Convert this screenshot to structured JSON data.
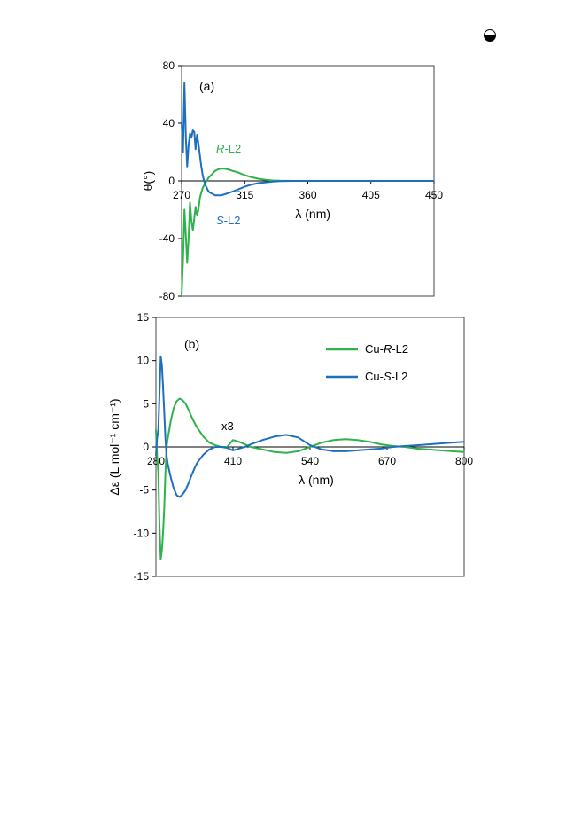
{
  "page_icon": "circle-half-icon",
  "colors": {
    "green": "#2db34a",
    "blue": "#1f6fbf"
  },
  "chart_data": [
    {
      "type": "line",
      "panel_label": "(a)",
      "xlabel": "λ (nm)",
      "ylabel": "θ(°)",
      "xlim": [
        270,
        450
      ],
      "ylim": [
        -80,
        80
      ],
      "xticks": [
        270,
        315,
        360,
        405,
        450
      ],
      "yticks": [
        -80,
        -40,
        0,
        40,
        80
      ],
      "grid": false,
      "annotations": [
        {
          "text": "R-L2",
          "italic_part": "R",
          "rest": "-L2",
          "series": "R-L2"
        },
        {
          "text": "S-L2",
          "italic_part": "S",
          "rest": "-L2",
          "series": "S-L2"
        }
      ],
      "series": [
        {
          "name": "R-L2",
          "color": "#2db34a",
          "x": [
            270,
            271,
            272,
            273,
            274,
            275,
            276,
            277,
            278,
            279,
            280,
            281,
            282,
            283,
            284,
            285,
            286,
            287,
            288,
            289,
            290,
            292,
            294,
            296,
            298,
            300,
            303,
            306,
            310,
            315,
            320,
            325,
            330,
            335,
            340,
            350,
            360,
            380,
            405,
            430,
            450
          ],
          "y": [
            -80,
            -55,
            -20,
            -38,
            -57,
            -40,
            -15,
            -28,
            -34,
            -26,
            -18,
            -24,
            -20,
            -12,
            -8,
            -5,
            -3,
            -1,
            0,
            2,
            3,
            5,
            7,
            8,
            8.5,
            8.5,
            8,
            7,
            6,
            4,
            2.5,
            1.5,
            0.8,
            0.3,
            0.1,
            0,
            0,
            0,
            0,
            0,
            0
          ]
        },
        {
          "name": "S-L2",
          "color": "#1f6fbf",
          "x": [
            270,
            271,
            272,
            273,
            274,
            275,
            276,
            277,
            278,
            279,
            280,
            281,
            282,
            283,
            284,
            285,
            286,
            287,
            288,
            289,
            290,
            292,
            294,
            296,
            298,
            300,
            303,
            306,
            310,
            315,
            320,
            325,
            330,
            335,
            340,
            350,
            360,
            380,
            405,
            430,
            450
          ],
          "y": [
            40,
            20,
            68,
            30,
            10,
            25,
            33,
            30,
            35,
            34,
            22,
            32,
            26,
            18,
            10,
            4,
            0,
            -3,
            -5,
            -7,
            -8,
            -9,
            -10,
            -10,
            -10,
            -9.5,
            -8.5,
            -7.5,
            -6,
            -4,
            -2.5,
            -1.5,
            -1,
            -0.5,
            -0.2,
            0,
            0,
            0,
            0,
            0,
            0
          ]
        }
      ]
    },
    {
      "type": "line",
      "panel_label": "(b)",
      "xlabel": "λ (nm)",
      "ylabel": "Δε (L mol⁻¹ cm⁻¹)",
      "xlim": [
        280,
        800
      ],
      "ylim": [
        -15,
        15
      ],
      "xticks": [
        280,
        410,
        540,
        670,
        800
      ],
      "yticks": [
        -15,
        -10,
        -5,
        0,
        5,
        10,
        15
      ],
      "grid": false,
      "legend_position": "top-right",
      "annotations": [
        {
          "text": "x3"
        }
      ],
      "series": [
        {
          "name": "Cu-R-L2",
          "legend_italic": "R",
          "color": "#2db34a",
          "x": [
            280,
            282,
            284,
            286,
            288,
            290,
            292,
            294,
            296,
            298,
            300,
            305,
            310,
            315,
            320,
            325,
            330,
            335,
            340,
            345,
            350,
            360,
            370,
            380,
            390,
            400,
            410,
            420,
            430,
            440,
            460,
            480,
            500,
            520,
            540,
            560,
            580,
            600,
            620,
            640,
            660,
            680,
            700,
            720,
            740,
            760,
            780,
            800
          ],
          "y": [
            2,
            -1,
            -3,
            -9,
            -13,
            -12,
            -10,
            -7,
            -3,
            0,
            1,
            3,
            4.5,
            5.3,
            5.6,
            5.4,
            5,
            4.3,
            3.5,
            2.8,
            2.2,
            1.2,
            0.5,
            0.2,
            0,
            0,
            0.8,
            0.6,
            0.3,
            0,
            -0.3,
            -0.6,
            -0.7,
            -0.5,
            0,
            0.5,
            0.8,
            0.9,
            0.8,
            0.6,
            0.3,
            0.1,
            0,
            -0.2,
            -0.3,
            -0.4,
            -0.5,
            -0.6
          ]
        },
        {
          "name": "Cu-S-L2",
          "legend_italic": "S",
          "color": "#1f6fbf",
          "x": [
            280,
            282,
            284,
            286,
            288,
            290,
            292,
            294,
            296,
            298,
            300,
            305,
            310,
            315,
            320,
            325,
            330,
            335,
            340,
            345,
            350,
            360,
            370,
            380,
            390,
            400,
            410,
            420,
            430,
            440,
            460,
            480,
            500,
            520,
            540,
            560,
            580,
            600,
            620,
            640,
            660,
            680,
            700,
            720,
            740,
            760,
            780,
            800
          ],
          "y": [
            -1,
            1,
            2,
            6,
            10.5,
            9.5,
            7,
            4,
            1,
            -1,
            -2,
            -3.5,
            -4.8,
            -5.6,
            -5.8,
            -5.5,
            -5,
            -4.2,
            -3.3,
            -2.5,
            -1.8,
            -0.9,
            -0.3,
            0,
            0,
            -0.1,
            -0.4,
            -0.2,
            0,
            0.3,
            0.8,
            1.2,
            1.4,
            1.1,
            0.2,
            -0.3,
            -0.5,
            -0.5,
            -0.4,
            -0.3,
            -0.2,
            0,
            0.1,
            0.2,
            0.3,
            0.4,
            0.5,
            0.6
          ]
        }
      ]
    }
  ]
}
